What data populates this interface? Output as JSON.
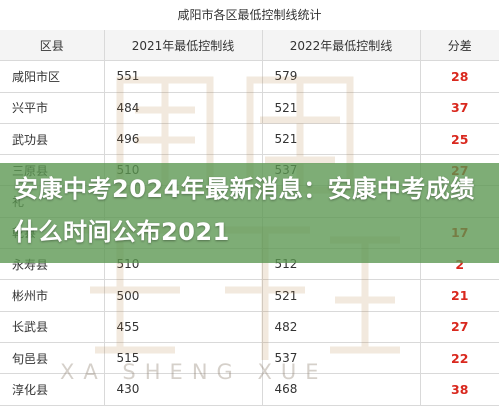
{
  "table": {
    "title": "咸阳市各区最低控制线统计",
    "headers": [
      "区县",
      "2021年最低控制线",
      "2022年最低控制线",
      "分差"
    ],
    "rows": [
      {
        "district": "咸阳市区",
        "y2021": "551",
        "y2022": "579",
        "diff": "28"
      },
      {
        "district": "兴平市",
        "y2021": "484",
        "y2022": "521",
        "diff": "37"
      },
      {
        "district": "武功县",
        "y2021": "496",
        "y2022": "521",
        "diff": "25"
      },
      {
        "district": "三原县",
        "y2021": "510",
        "y2022": "537",
        "diff": "27"
      },
      {
        "district": "礼",
        "y2021": "",
        "y2022": "",
        "diff": ""
      },
      {
        "district": "乾县",
        "y2021": "",
        "y2022": "",
        "diff": "17"
      },
      {
        "district": "永寿县",
        "y2021": "510",
        "y2022": "512",
        "diff": "2"
      },
      {
        "district": "彬州市",
        "y2021": "500",
        "y2022": "521",
        "diff": "21"
      },
      {
        "district": "长武县",
        "y2021": "455",
        "y2022": "482",
        "diff": "27"
      },
      {
        "district": "旬邑县",
        "y2021": "515",
        "y2022": "537",
        "diff": "22"
      },
      {
        "district": "淳化县",
        "y2021": "430",
        "y2022": "468",
        "diff": "38"
      }
    ]
  },
  "banner": {
    "headline": "安康中考2024年最新消息：安康中考成绩什么时间公布2021"
  },
  "watermark": {
    "subtext": "XA SHENG XUE"
  },
  "colors": {
    "banner_bg": "#5a9650",
    "diff_text": "#d9281e",
    "grid_line": "#d9d9d9"
  }
}
